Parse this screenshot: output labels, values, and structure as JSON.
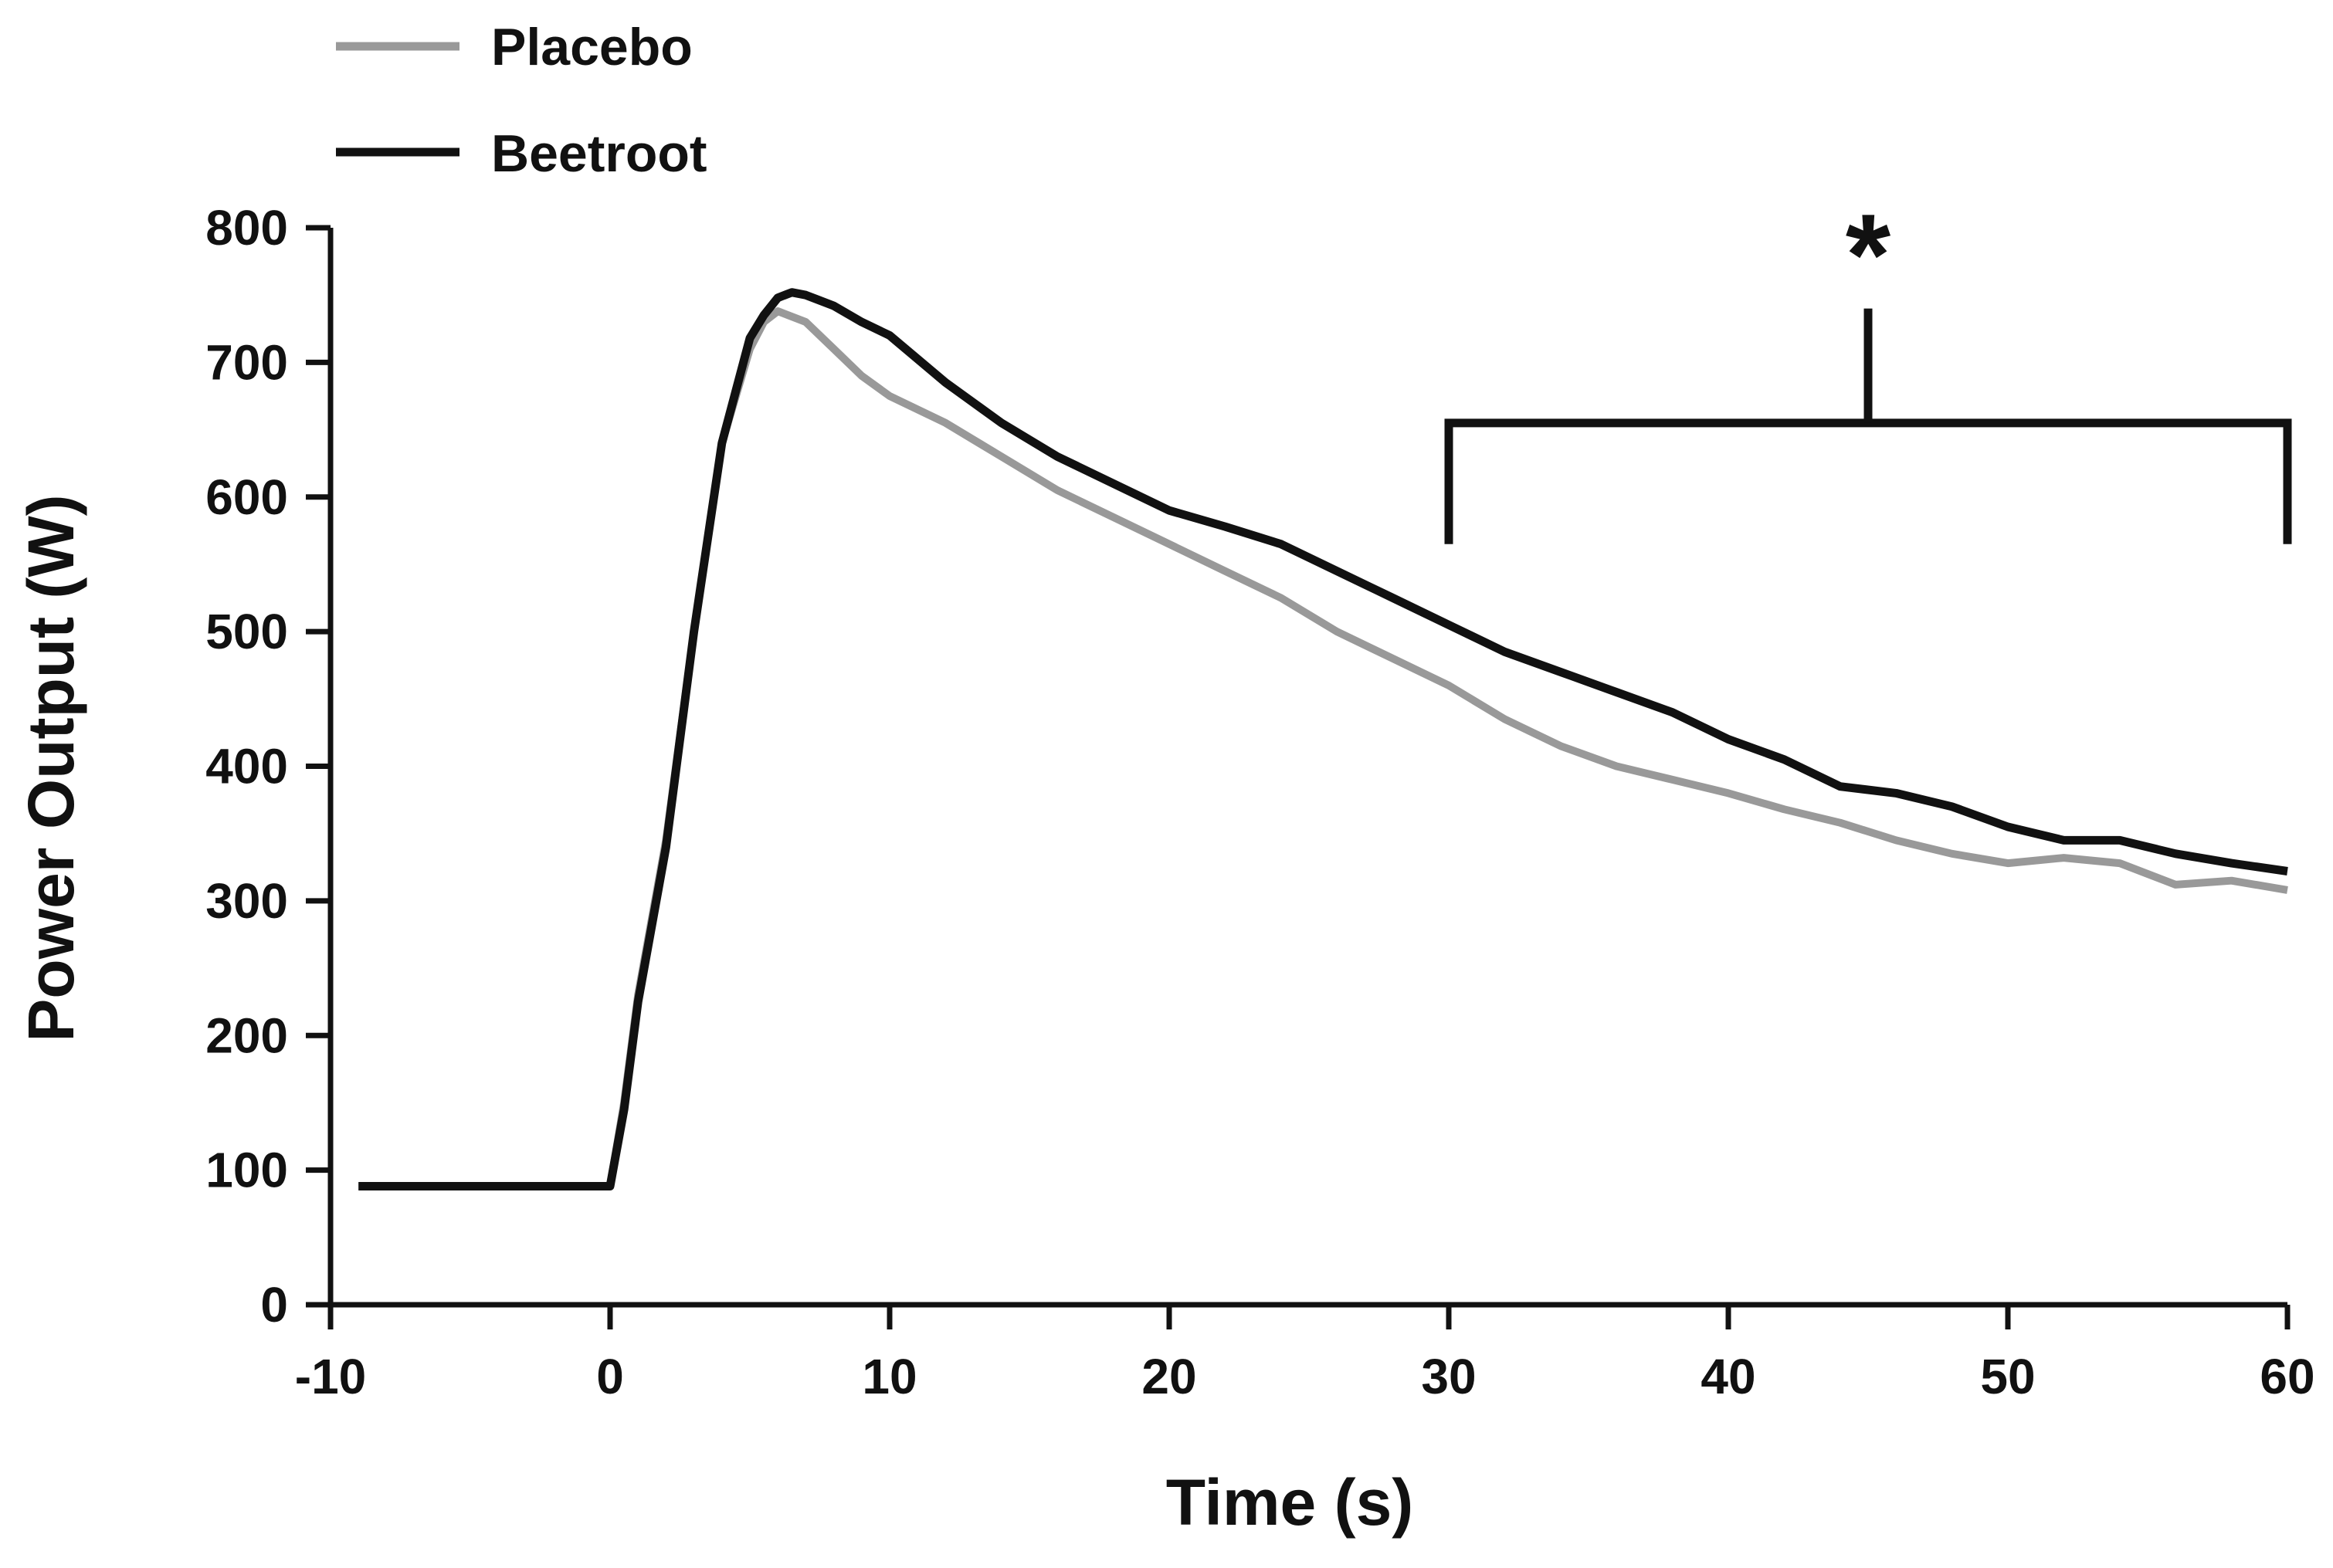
{
  "chart_data": {
    "type": "line",
    "title": "",
    "xlabel": "Time (s)",
    "ylabel": "Power Output (W)",
    "xlim": [
      -10,
      60
    ],
    "ylim": [
      0,
      800
    ],
    "xticks": [
      -10,
      0,
      10,
      20,
      30,
      40,
      50,
      60
    ],
    "yticks": [
      0,
      100,
      200,
      300,
      400,
      500,
      600,
      700,
      800
    ],
    "legend_position": "top-left",
    "colors": {
      "placebo": "#999999",
      "beetroot": "#111111",
      "axis": "#111111"
    },
    "series": [
      {
        "name": "Placebo",
        "x": [
          -9,
          0,
          0.5,
          1,
          2,
          3,
          4,
          5,
          5.5,
          6,
          7,
          8,
          9,
          10,
          12,
          14,
          16,
          18,
          20,
          22,
          24,
          26,
          28,
          30,
          32,
          34,
          36,
          38,
          40,
          42,
          44,
          46,
          48,
          50,
          52,
          54,
          56,
          58,
          60
        ],
        "values": [
          88,
          88,
          150,
          230,
          345,
          500,
          640,
          710,
          730,
          738,
          730,
          710,
          690,
          675,
          655,
          630,
          605,
          585,
          565,
          545,
          525,
          500,
          480,
          460,
          435,
          415,
          400,
          390,
          380,
          368,
          358,
          345,
          335,
          328,
          332,
          328,
          312,
          315,
          308
        ]
      },
      {
        "name": "Beetroot",
        "x": [
          -9,
          0,
          0.5,
          1,
          2,
          3,
          4,
          5,
          5.5,
          6,
          6.5,
          7,
          8,
          9,
          10,
          12,
          14,
          16,
          18,
          20,
          22,
          24,
          26,
          28,
          30,
          32,
          34,
          36,
          38,
          40,
          42,
          44,
          46,
          48,
          50,
          52,
          54,
          56,
          58,
          60
        ],
        "values": [
          88,
          88,
          145,
          225,
          340,
          500,
          640,
          718,
          735,
          748,
          752,
          750,
          742,
          730,
          720,
          685,
          655,
          630,
          610,
          590,
          578,
          565,
          545,
          525,
          505,
          485,
          470,
          455,
          440,
          420,
          405,
          385,
          380,
          370,
          355,
          345,
          345,
          335,
          328,
          322
        ]
      }
    ],
    "annotations": [
      {
        "text": "*",
        "x_range": [
          30,
          60
        ],
        "meaning": "significant difference bracket"
      }
    ]
  }
}
